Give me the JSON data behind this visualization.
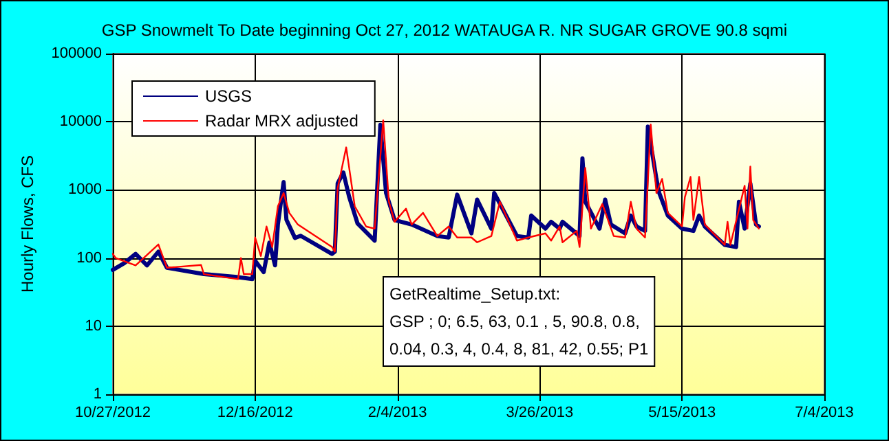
{
  "chart_data": {
    "type": "line",
    "title": "GSP Snowmelt To Date beginning Oct 27, 2012 WATAUGA R. NR SUGAR GROVE 90.8 sqmi",
    "ylabel": "Hourly Flows, CFS",
    "annotations": [
      "GetRealtime_Setup.txt:\nGSP ; 0; 6.5, 63, 0.1 , 5, 90.8, 0.8,\n0.04, 0.3, 4, 0.4, 8, 81, 42, 0.55; P1"
    ],
    "series": [
      {
        "name": "USGS",
        "color": "#000080",
        "x": [
          "2012-10-27",
          "2012-10-31",
          "2012-11-04",
          "2012-11-08",
          "2012-11-12",
          "2012-11-15",
          "2012-11-28",
          "2012-12-09",
          "2012-12-15",
          "2012-12-16",
          "2012-12-19",
          "2012-12-21",
          "2012-12-23",
          "2012-12-24",
          "2012-12-26",
          "2012-12-27",
          "2012-12-30",
          "2013-01-01",
          "2013-01-12",
          "2013-01-13",
          "2013-01-14",
          "2013-01-16",
          "2013-01-18",
          "2013-01-21",
          "2013-01-27",
          "2013-01-29",
          "2013-01-31",
          "2013-02-03",
          "2013-02-09",
          "2013-02-18",
          "2013-02-22",
          "2013-02-25",
          "2013-03-02",
          "2013-03-04",
          "2013-03-09",
          "2013-03-10",
          "2013-03-18",
          "2013-03-22",
          "2013-03-23",
          "2013-03-28",
          "2013-03-30",
          "2013-04-02",
          "2013-04-03",
          "2013-04-09",
          "2013-04-10",
          "2013-04-11",
          "2013-04-16",
          "2013-04-18",
          "2013-04-20",
          "2013-04-25",
          "2013-04-27",
          "2013-04-29",
          "2013-05-02",
          "2013-05-03",
          "2013-05-06",
          "2013-05-07",
          "2013-05-10",
          "2013-05-15",
          "2013-05-19",
          "2013-05-21",
          "2013-05-23",
          "2013-05-30",
          "2013-06-03",
          "2013-06-04",
          "2013-06-06",
          "2013-06-08",
          "2013-06-10",
          "2013-06-11"
        ],
        "values": [
          67,
          84,
          115,
          78,
          124,
          72,
          58,
          53,
          49,
          91,
          62,
          168,
          78,
          312,
          1300,
          363,
          197,
          212,
          115,
          124,
          1250,
          1800,
          800,
          320,
          180,
          9000,
          900,
          360,
          310,
          210,
          200,
          850,
          230,
          720,
          270,
          900,
          210,
          200,
          420,
          270,
          340,
          270,
          340,
          210,
          2900,
          670,
          270,
          720,
          310,
          230,
          420,
          290,
          250,
          8500,
          1450,
          900,
          420,
          270,
          250,
          420,
          290,
          156,
          145,
          670,
          270,
          1250,
          310,
          290
        ]
      },
      {
        "name": "Radar MRX adjusted",
        "color": "#ff0000",
        "x": [
          "2012-10-27",
          "2012-10-28",
          "2012-11-04",
          "2012-11-12",
          "2012-11-15",
          "2012-11-27",
          "2012-11-28",
          "2012-12-10",
          "2012-12-11",
          "2012-12-12",
          "2012-12-15",
          "2012-12-16",
          "2012-12-18",
          "2012-12-20",
          "2012-12-22",
          "2012-12-24",
          "2012-12-26",
          "2012-12-28",
          "2012-12-31",
          "2013-01-12",
          "2013-01-13",
          "2013-01-14",
          "2013-01-17",
          "2013-01-20",
          "2013-01-24",
          "2013-01-27",
          "2013-01-30",
          "2013-02-01",
          "2013-02-03",
          "2013-02-07",
          "2013-02-09",
          "2013-02-13",
          "2013-02-18",
          "2013-02-22",
          "2013-02-25",
          "2013-03-02",
          "2013-03-04",
          "2013-03-09",
          "2013-03-12",
          "2013-03-18",
          "2013-03-22",
          "2013-03-28",
          "2013-03-30",
          "2013-04-02",
          "2013-04-03",
          "2013-04-08",
          "2013-04-09",
          "2013-04-11",
          "2013-04-13",
          "2013-04-17",
          "2013-04-21",
          "2013-04-25",
          "2013-04-27",
          "2013-04-29",
          "2013-05-02",
          "2013-05-04",
          "2013-05-06",
          "2013-05-08",
          "2013-05-10",
          "2013-05-15",
          "2013-05-16",
          "2013-05-18",
          "2013-05-19",
          "2013-05-21",
          "2013-05-23",
          "2013-05-30",
          "2013-05-31",
          "2013-06-01",
          "2013-06-06",
          "2013-06-07",
          "2013-06-08",
          "2013-06-09",
          "2013-06-11"
        ],
        "values": [
          115,
          100,
          78,
          158,
          72,
          79,
          58,
          49,
          100,
          58,
          58,
          200,
          107,
          290,
          145,
          575,
          900,
          460,
          310,
          145,
          124,
          1060,
          4200,
          575,
          290,
          270,
          10500,
          670,
          340,
          530,
          310,
          460,
          210,
          290,
          200,
          200,
          170,
          210,
          670,
          180,
          200,
          230,
          180,
          290,
          170,
          250,
          145,
          2100,
          270,
          620,
          210,
          200,
          670,
          270,
          200,
          9100,
          900,
          1450,
          460,
          290,
          780,
          1550,
          360,
          1550,
          310,
          156,
          340,
          156,
          1150,
          270,
          2200,
          360,
          270
        ]
      }
    ],
    "xlim": [
      "2012-10-27",
      "2013-07-04"
    ],
    "xticks": [
      {
        "value": "2012-10-27",
        "label": "10/27/2012"
      },
      {
        "value": "2012-12-16",
        "label": "12/16/2012"
      },
      {
        "value": "2013-02-04",
        "label": "2/4/2013"
      },
      {
        "value": "2013-03-26",
        "label": "3/26/2013"
      },
      {
        "value": "2013-05-15",
        "label": "5/15/2013"
      },
      {
        "value": "2013-07-04",
        "label": "7/4/2013"
      }
    ],
    "ylim": [
      1,
      100000
    ],
    "yticks": [
      1,
      10,
      100,
      1000,
      10000,
      100000
    ],
    "log": "y",
    "grid": true,
    "legend": "top left",
    "marker": "none",
    "line_style": "solid"
  }
}
